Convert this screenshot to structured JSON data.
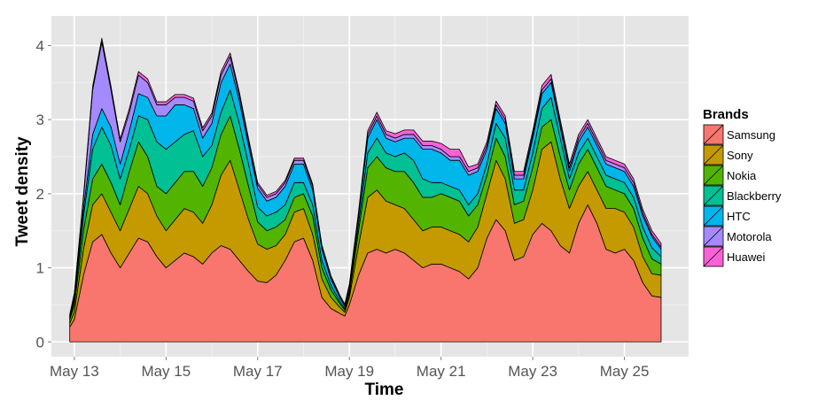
{
  "chart_data": {
    "type": "area",
    "stacked": true,
    "xlabel": "Time",
    "ylabel": "Tweet density",
    "x_tick_labels": [
      "May 13",
      "May 15",
      "May 17",
      "May 19",
      "May 21",
      "May 23",
      "May 25"
    ],
    "x_tick_values": [
      13,
      15,
      17,
      19,
      21,
      23,
      25
    ],
    "y_ticks": [
      0,
      1,
      2,
      3,
      4
    ],
    "xlim": [
      12.5,
      26.4
    ],
    "ylim": [
      -0.2,
      4.4
    ],
    "grid": true,
    "legend": {
      "title": "Brands",
      "position": "right"
    },
    "x": [
      12.9,
      13.0,
      13.2,
      13.4,
      13.6,
      13.8,
      14.0,
      14.2,
      14.4,
      14.6,
      14.8,
      15.0,
      15.2,
      15.4,
      15.6,
      15.8,
      16.0,
      16.2,
      16.4,
      16.6,
      16.8,
      17.0,
      17.2,
      17.4,
      17.6,
      17.8,
      18.0,
      18.2,
      18.4,
      18.6,
      18.8,
      18.9,
      19.0,
      19.2,
      19.4,
      19.6,
      19.8,
      20.0,
      20.2,
      20.4,
      20.6,
      20.8,
      21.0,
      21.2,
      21.4,
      21.6,
      21.8,
      22.0,
      22.2,
      22.4,
      22.6,
      22.8,
      23.0,
      23.2,
      23.4,
      23.6,
      23.8,
      24.0,
      24.2,
      24.4,
      24.6,
      24.8,
      25.0,
      25.2,
      25.4,
      25.6,
      25.8
    ],
    "series": [
      {
        "name": "Samsung",
        "color": "#F8766D",
        "values": [
          0.2,
          0.3,
          0.9,
          1.35,
          1.45,
          1.2,
          1.0,
          1.2,
          1.4,
          1.35,
          1.15,
          1.0,
          1.1,
          1.2,
          1.15,
          1.05,
          1.2,
          1.3,
          1.25,
          1.1,
          0.95,
          0.82,
          0.8,
          0.9,
          1.1,
          1.35,
          1.4,
          1.1,
          0.6,
          0.45,
          0.38,
          0.35,
          0.5,
          0.9,
          1.2,
          1.25,
          1.2,
          1.25,
          1.2,
          1.1,
          1.0,
          1.05,
          1.05,
          1.0,
          0.95,
          0.85,
          1.0,
          1.4,
          1.65,
          1.5,
          1.1,
          1.15,
          1.45,
          1.6,
          1.5,
          1.3,
          1.2,
          1.6,
          1.85,
          1.6,
          1.25,
          1.2,
          1.25,
          1.1,
          0.8,
          0.62,
          0.6
        ]
      },
      {
        "name": "Sony",
        "color": "#C49A00",
        "values": [
          0.05,
          0.1,
          0.35,
          0.5,
          0.55,
          0.55,
          0.5,
          0.6,
          0.7,
          0.65,
          0.55,
          0.5,
          0.55,
          0.6,
          0.6,
          0.55,
          0.65,
          0.95,
          1.2,
          0.95,
          0.7,
          0.5,
          0.45,
          0.4,
          0.35,
          0.4,
          0.4,
          0.35,
          0.25,
          0.15,
          0.08,
          0.05,
          0.1,
          0.4,
          0.75,
          0.8,
          0.7,
          0.6,
          0.6,
          0.55,
          0.5,
          0.5,
          0.5,
          0.5,
          0.5,
          0.5,
          0.55,
          0.6,
          0.8,
          0.7,
          0.5,
          0.5,
          0.6,
          1.0,
          1.2,
          0.9,
          0.6,
          0.5,
          0.45,
          0.45,
          0.55,
          0.6,
          0.5,
          0.45,
          0.35,
          0.3,
          0.3
        ]
      },
      {
        "name": "Nokia",
        "color": "#53B400",
        "values": [
          0.05,
          0.1,
          0.25,
          0.35,
          0.4,
          0.4,
          0.35,
          0.5,
          0.6,
          0.5,
          0.4,
          0.5,
          0.5,
          0.5,
          0.55,
          0.5,
          0.5,
          0.55,
          0.6,
          0.55,
          0.45,
          0.3,
          0.25,
          0.25,
          0.2,
          0.2,
          0.2,
          0.25,
          0.15,
          0.1,
          0.05,
          0.03,
          0.05,
          0.2,
          0.4,
          0.45,
          0.45,
          0.45,
          0.5,
          0.5,
          0.45,
          0.4,
          0.45,
          0.45,
          0.45,
          0.35,
          0.3,
          0.25,
          0.3,
          0.3,
          0.25,
          0.25,
          0.3,
          0.3,
          0.3,
          0.3,
          0.25,
          0.3,
          0.3,
          0.3,
          0.3,
          0.25,
          0.25,
          0.25,
          0.25,
          0.2,
          0.15
        ]
      },
      {
        "name": "Blackberry",
        "color": "#00C094",
        "values": [
          0.02,
          0.05,
          0.2,
          0.4,
          0.5,
          0.5,
          0.35,
          0.3,
          0.35,
          0.5,
          0.6,
          0.6,
          0.55,
          0.5,
          0.55,
          0.4,
          0.3,
          0.3,
          0.35,
          0.35,
          0.3,
          0.2,
          0.2,
          0.2,
          0.2,
          0.2,
          0.15,
          0.15,
          0.1,
          0.06,
          0.03,
          0.02,
          0.04,
          0.1,
          0.2,
          0.25,
          0.2,
          0.2,
          0.25,
          0.3,
          0.25,
          0.2,
          0.15,
          0.15,
          0.15,
          0.15,
          0.15,
          0.15,
          0.2,
          0.25,
          0.2,
          0.15,
          0.2,
          0.25,
          0.3,
          0.25,
          0.15,
          0.15,
          0.15,
          0.15,
          0.15,
          0.15,
          0.15,
          0.15,
          0.15,
          0.15,
          0.1
        ]
      },
      {
        "name": "HTC",
        "color": "#00B6EB",
        "values": [
          0.02,
          0.05,
          0.1,
          0.2,
          0.25,
          0.25,
          0.2,
          0.25,
          0.3,
          0.3,
          0.35,
          0.45,
          0.5,
          0.4,
          0.3,
          0.25,
          0.3,
          0.4,
          0.35,
          0.3,
          0.25,
          0.25,
          0.2,
          0.2,
          0.25,
          0.25,
          0.25,
          0.2,
          0.15,
          0.08,
          0.05,
          0.03,
          0.05,
          0.1,
          0.2,
          0.25,
          0.2,
          0.2,
          0.2,
          0.3,
          0.4,
          0.45,
          0.4,
          0.35,
          0.4,
          0.4,
          0.3,
          0.2,
          0.2,
          0.2,
          0.15,
          0.15,
          0.2,
          0.2,
          0.2,
          0.15,
          0.1,
          0.15,
          0.15,
          0.15,
          0.15,
          0.15,
          0.15,
          0.15,
          0.15,
          0.15,
          0.1
        ]
      },
      {
        "name": "Motorola",
        "color": "#A58AFF",
        "values": [
          0.02,
          0.04,
          0.15,
          0.6,
          0.9,
          0.5,
          0.3,
          0.25,
          0.25,
          0.2,
          0.15,
          0.15,
          0.1,
          0.1,
          0.1,
          0.1,
          0.1,
          0.1,
          0.1,
          0.08,
          0.06,
          0.05,
          0.05,
          0.05,
          0.05,
          0.05,
          0.05,
          0.05,
          0.04,
          0.03,
          0.02,
          0.02,
          0.02,
          0.03,
          0.05,
          0.05,
          0.05,
          0.05,
          0.05,
          0.05,
          0.05,
          0.05,
          0.05,
          0.05,
          0.05,
          0.05,
          0.05,
          0.05,
          0.05,
          0.05,
          0.05,
          0.05,
          0.05,
          0.05,
          0.05,
          0.05,
          0.05,
          0.05,
          0.05,
          0.05,
          0.05,
          0.05,
          0.05,
          0.05,
          0.04,
          0.03,
          0.03
        ]
      },
      {
        "name": "Huawei",
        "color": "#FB61D7",
        "values": [
          0.01,
          0.02,
          0.03,
          0.05,
          0.05,
          0.05,
          0.04,
          0.05,
          0.05,
          0.05,
          0.04,
          0.04,
          0.04,
          0.04,
          0.04,
          0.04,
          0.04,
          0.05,
          0.05,
          0.04,
          0.04,
          0.03,
          0.03,
          0.03,
          0.03,
          0.03,
          0.03,
          0.03,
          0.02,
          0.02,
          0.01,
          0.01,
          0.02,
          0.03,
          0.05,
          0.05,
          0.05,
          0.06,
          0.06,
          0.06,
          0.06,
          0.06,
          0.08,
          0.1,
          0.1,
          0.06,
          0.05,
          0.05,
          0.05,
          0.05,
          0.05,
          0.05,
          0.05,
          0.06,
          0.06,
          0.05,
          0.05,
          0.05,
          0.05,
          0.05,
          0.05,
          0.05,
          0.05,
          0.05,
          0.05,
          0.05,
          0.05
        ]
      }
    ]
  }
}
